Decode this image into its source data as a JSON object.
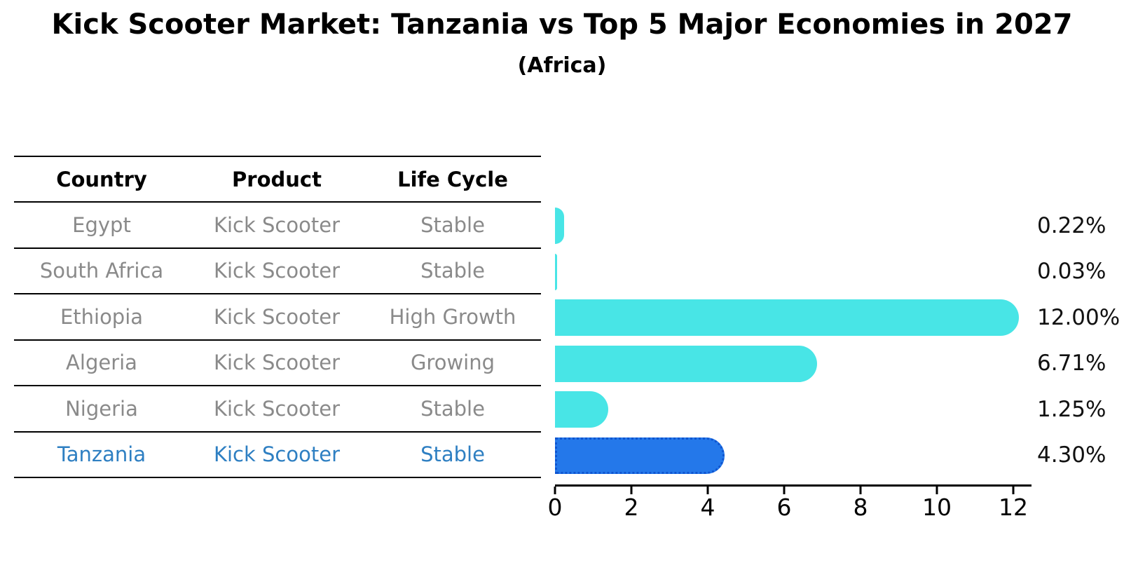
{
  "title": "Kick Scooter Market: Tanzania vs Top 5 Major Economies in 2027",
  "subtitle": "(Africa)",
  "table": {
    "headers": [
      "Country",
      "Product",
      "Life Cycle"
    ],
    "rows": [
      {
        "country": "Egypt",
        "product": "Kick Scooter",
        "life_cycle": "Stable"
      },
      {
        "country": "South Africa",
        "product": "Kick Scooter",
        "life_cycle": "Stable"
      },
      {
        "country": "Ethiopia",
        "product": "Kick Scooter",
        "life_cycle": "High Growth"
      },
      {
        "country": "Algeria",
        "product": "Kick Scooter",
        "life_cycle": "Growing"
      },
      {
        "country": "Nigeria",
        "product": "Kick Scooter",
        "life_cycle": "Stable"
      },
      {
        "country": "Tanzania",
        "product": "Kick Scooter",
        "life_cycle": "Stable"
      }
    ],
    "highlighted_row": "Tanzania"
  },
  "chart_data": {
    "type": "bar",
    "orientation": "horizontal",
    "title": "Kick Scooter Market: Tanzania vs Top 5 Major Economies in 2027",
    "subtitle": "(Africa)",
    "categories": [
      "Egypt",
      "South Africa",
      "Ethiopia",
      "Algeria",
      "Nigeria",
      "Tanzania"
    ],
    "values": [
      0.22,
      0.03,
      12.0,
      6.71,
      1.25,
      4.3
    ],
    "value_labels": [
      "0.22%",
      "0.03%",
      "12.00%",
      "6.71%",
      "1.25%",
      "4.30%"
    ],
    "x_ticks": [
      0,
      2,
      4,
      6,
      8,
      10,
      12
    ],
    "xlim": [
      0,
      12.5
    ],
    "grid": false,
    "legend": "none",
    "highlight_index": 5
  },
  "colors": {
    "bar_default": "#48e5e6",
    "bar_highlight": "#2478ea",
    "bar_highlight_border": "#0f55d0",
    "highlight_text": "#2e7fc2",
    "table_text": "#8a8a8a",
    "header_text": "#000000",
    "axis": "#000000",
    "background": "#ffffff"
  }
}
